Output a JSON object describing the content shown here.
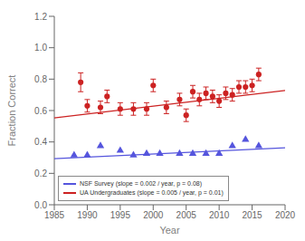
{
  "chart_data": {
    "type": "scatter",
    "xlabel": "Year",
    "ylabel": "Fraction Correct",
    "xlim": [
      1985,
      2020
    ],
    "ylim": [
      0.0,
      1.2
    ],
    "xticks": [
      1985,
      1990,
      1995,
      2000,
      2005,
      2010,
      2015,
      2020
    ],
    "yticks": [
      {
        "value": 0.0,
        "label": "0.0"
      },
      0.2,
      0.4,
      0.6,
      0.8,
      {
        "value": 1.0,
        "label": "1.0"
      },
      1.2
    ],
    "grid": false,
    "legend": "lower left",
    "series": [
      {
        "name": "NSF Survey (slope = 0.002 / year, p = 0.08)",
        "color": "#5555dd",
        "marker": "triangle",
        "x": [
          1988,
          1990,
          1992,
          1995,
          1997,
          1999,
          2001,
          2004,
          2006,
          2008,
          2010,
          2012,
          2014,
          2016
        ],
        "values": [
          0.315,
          0.315,
          0.375,
          0.345,
          0.315,
          0.325,
          0.325,
          0.325,
          0.325,
          0.325,
          0.325,
          0.375,
          0.415,
          0.375
        ],
        "trend": {
          "type": "line",
          "x": [
            1985,
            2020
          ],
          "values": [
            0.293,
            0.363
          ]
        }
      },
      {
        "name": "UA Undergraduates (slope = 0.005 / year, p = 0.01)",
        "color": "#cc2222",
        "marker": "circle",
        "x": [
          1989,
          1990,
          1992,
          1993,
          1995,
          1997,
          1999,
          2000,
          2002,
          2004,
          2005,
          2006,
          2007,
          2008,
          2009,
          2010,
          2011,
          2012,
          2013,
          2014,
          2015,
          2016
        ],
        "values": [
          0.78,
          0.63,
          0.62,
          0.69,
          0.61,
          0.61,
          0.61,
          0.76,
          0.62,
          0.67,
          0.57,
          0.72,
          0.67,
          0.71,
          0.69,
          0.66,
          0.71,
          0.7,
          0.75,
          0.75,
          0.76,
          0.83
        ],
        "errors": [
          0.06,
          0.04,
          0.04,
          0.04,
          0.04,
          0.04,
          0.04,
          0.04,
          0.04,
          0.04,
          0.04,
          0.04,
          0.04,
          0.04,
          0.04,
          0.04,
          0.04,
          0.04,
          0.04,
          0.04,
          0.04,
          0.04
        ],
        "trend": {
          "type": "line",
          "x": [
            1985,
            2020
          ],
          "values": [
            0.553,
            0.728
          ]
        }
      }
    ]
  }
}
